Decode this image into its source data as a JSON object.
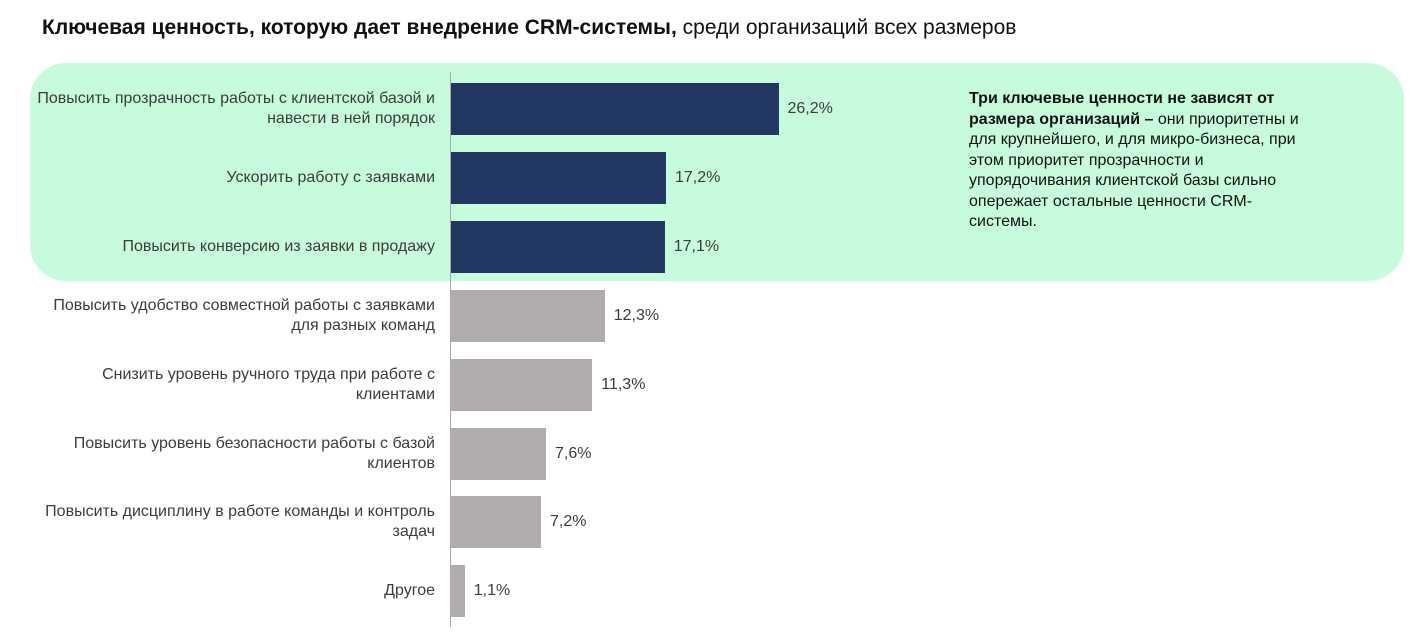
{
  "title": {
    "bold": "Ключевая ценность, которую дает внедрение CRM-системы,",
    "normal": " среди организаций всех размеров"
  },
  "note": {
    "bold": "Три ключевые ценности не зависят от размера организаций –",
    "normal": " они приоритетны и для крупнейшего, и для микро-бизнеса, при этом приоритет прозрачности и упорядочивания клиентской базы сильно опережает остальные ценности CRM-системы."
  },
  "colors": {
    "highlight_bg": "#c6fbdc",
    "top_bar": "#223862",
    "other_bar": "#afacab"
  },
  "chart_data": {
    "type": "bar",
    "orientation": "horizontal",
    "title": "Ключевая ценность, которую дает внедрение CRM-системы, среди организаций всех размеров",
    "categories": [
      "Повысить прозрачность работы с клиентской базой и навести в ней порядок",
      "Ускорить работу с заявками",
      "Повысить конверсию из заявки в продажу",
      "Повысить удобство совместной работы с заявками для разных команд",
      "Снизить уровень ручного труда при работе с клиентами",
      "Повысить уровень безопасности работы с базой клиентов",
      "Повысить дисциплину в работе команды и контроль задач",
      "Другое"
    ],
    "values": [
      26.2,
      17.2,
      17.1,
      12.3,
      11.3,
      7.6,
      7.2,
      1.1
    ],
    "value_labels": [
      "26,2%",
      "17,2%",
      "17,1%",
      "12,3%",
      "11,3%",
      "7,6%",
      "7,2%",
      "1,1%"
    ],
    "highlighted_count": 3,
    "unit": "%",
    "xlabel": "",
    "ylabel": "",
    "grid": false,
    "legend": "none"
  }
}
